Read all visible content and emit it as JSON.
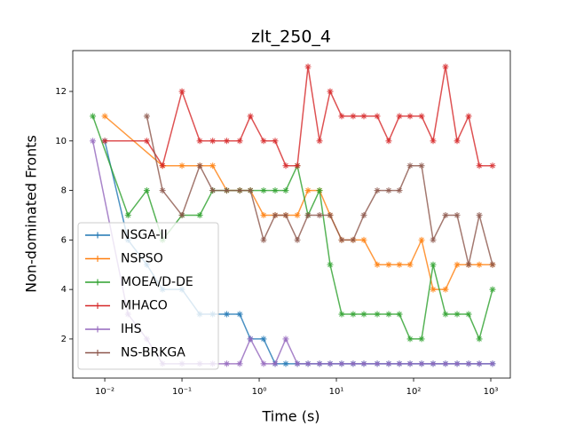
{
  "chart_data": {
    "type": "line",
    "title": "zlt_250_4",
    "xlabel": "Time (s)",
    "ylabel": "Non-dominated Fronts",
    "xscale": "log",
    "xlim": [
      0.00385,
      1790
    ],
    "ylim": [
      0.42,
      13.65
    ],
    "xticks": [
      {
        "value": 0.01,
        "label": "10⁻²"
      },
      {
        "value": 0.1,
        "label": "10⁻¹"
      },
      {
        "value": 1,
        "label": "10⁰"
      },
      {
        "value": 10,
        "label": "10¹"
      },
      {
        "value": 100,
        "label": "10²"
      },
      {
        "value": 1000,
        "label": "10³"
      }
    ],
    "yticks": [
      2,
      4,
      6,
      8,
      10,
      12
    ],
    "legend": "lower left",
    "series": [
      {
        "name": "NSGA-II",
        "color": "#1f77b4",
        "x": [
          0.01,
          0.02,
          0.035,
          0.056,
          0.1,
          0.17,
          0.25,
          0.38,
          0.56,
          0.77,
          1.14,
          1.61,
          2.21,
          3.12,
          4.29,
          6.05,
          8.3,
          11.7,
          16.5,
          22.7,
          33.8,
          47.6,
          65.5,
          90,
          127,
          179,
          259,
          366,
          516,
          710,
          1054
        ],
        "values": [
          10,
          6,
          5,
          4,
          4,
          3,
          3,
          3,
          3,
          2,
          2,
          1,
          1,
          1,
          1,
          1,
          1,
          1,
          1,
          1,
          1,
          1,
          1,
          1,
          1,
          1,
          1,
          1,
          1,
          1,
          1
        ]
      },
      {
        "name": "NSPSO",
        "color": "#ff7f0e",
        "x": [
          0.01,
          0.056,
          0.1,
          0.17,
          0.25,
          0.38,
          0.56,
          0.77,
          1.14,
          1.61,
          2.21,
          3.12,
          4.29,
          6.05,
          8.3,
          11.7,
          16.5,
          22.7,
          33.8,
          47.6,
          65.5,
          90,
          127,
          179,
          259,
          366,
          516,
          710,
          1054
        ],
        "values": [
          11,
          9,
          9,
          9,
          9,
          8,
          8,
          8,
          7,
          7,
          7,
          7,
          8,
          8,
          7,
          6,
          6,
          6,
          5,
          5,
          5,
          5,
          6,
          4,
          4,
          5,
          5,
          5,
          5
        ]
      },
      {
        "name": "MOEA/D-DE",
        "color": "#2ca02c",
        "x": [
          0.007,
          0.02,
          0.035,
          0.056,
          0.1,
          0.17,
          0.25,
          0.38,
          0.56,
          0.77,
          1.14,
          1.61,
          2.21,
          3.12,
          4.29,
          6.05,
          8.3,
          11.7,
          16.5,
          22.7,
          33.8,
          47.6,
          65.5,
          90,
          127,
          179,
          259,
          366,
          516,
          710,
          1054
        ],
        "values": [
          11,
          7,
          8,
          6,
          7,
          7,
          8,
          8,
          8,
          8,
          8,
          8,
          8,
          9,
          7,
          8,
          5,
          3,
          3,
          3,
          3,
          3,
          3,
          2,
          2,
          5,
          3,
          3,
          3,
          2,
          4
        ]
      },
      {
        "name": "MHACO",
        "color": "#d62728",
        "x": [
          0.01,
          0.035,
          0.056,
          0.1,
          0.17,
          0.25,
          0.38,
          0.56,
          0.77,
          1.14,
          1.61,
          2.21,
          3.12,
          4.29,
          6.05,
          8.3,
          11.7,
          16.5,
          22.7,
          33.8,
          47.6,
          65.5,
          90,
          127,
          179,
          259,
          366,
          516,
          710,
          1054
        ],
        "values": [
          10,
          10,
          9,
          12,
          10,
          10,
          10,
          10,
          11,
          10,
          10,
          9,
          9,
          13,
          10,
          12,
          11,
          11,
          11,
          11,
          10,
          11,
          11,
          11,
          10,
          13,
          10,
          11,
          9,
          9
        ]
      },
      {
        "name": "IHS",
        "color": "#9467bd",
        "x": [
          0.007,
          0.02,
          0.035,
          0.056,
          0.1,
          0.17,
          0.25,
          0.38,
          0.56,
          0.77,
          1.14,
          1.61,
          2.21,
          3.12,
          4.29,
          6.05,
          8.3,
          11.7,
          16.5,
          22.7,
          33.8,
          47.6,
          65.5,
          90,
          127,
          179,
          259,
          366,
          516,
          710,
          1054
        ],
        "values": [
          10,
          3,
          2,
          1,
          1,
          1,
          1,
          1,
          1,
          2,
          1,
          1,
          2,
          1,
          1,
          1,
          1,
          1,
          1,
          1,
          1,
          1,
          1,
          1,
          1,
          1,
          1,
          1,
          1,
          1,
          1
        ]
      },
      {
        "name": "NS-BRKGA",
        "color": "#8c564b",
        "x": [
          0.035,
          0.056,
          0.1,
          0.17,
          0.25,
          0.38,
          0.56,
          0.77,
          1.14,
          1.61,
          2.21,
          3.12,
          4.29,
          6.05,
          8.3,
          11.7,
          16.5,
          22.7,
          33.8,
          47.6,
          65.5,
          90,
          127,
          179,
          259,
          366,
          516,
          710,
          1054
        ],
        "values": [
          11,
          8,
          7,
          9,
          8,
          8,
          8,
          8,
          6,
          7,
          7,
          6,
          7,
          7,
          7,
          6,
          6,
          7,
          8,
          8,
          8,
          9,
          9,
          6,
          7,
          7,
          5,
          7,
          5
        ]
      }
    ]
  }
}
